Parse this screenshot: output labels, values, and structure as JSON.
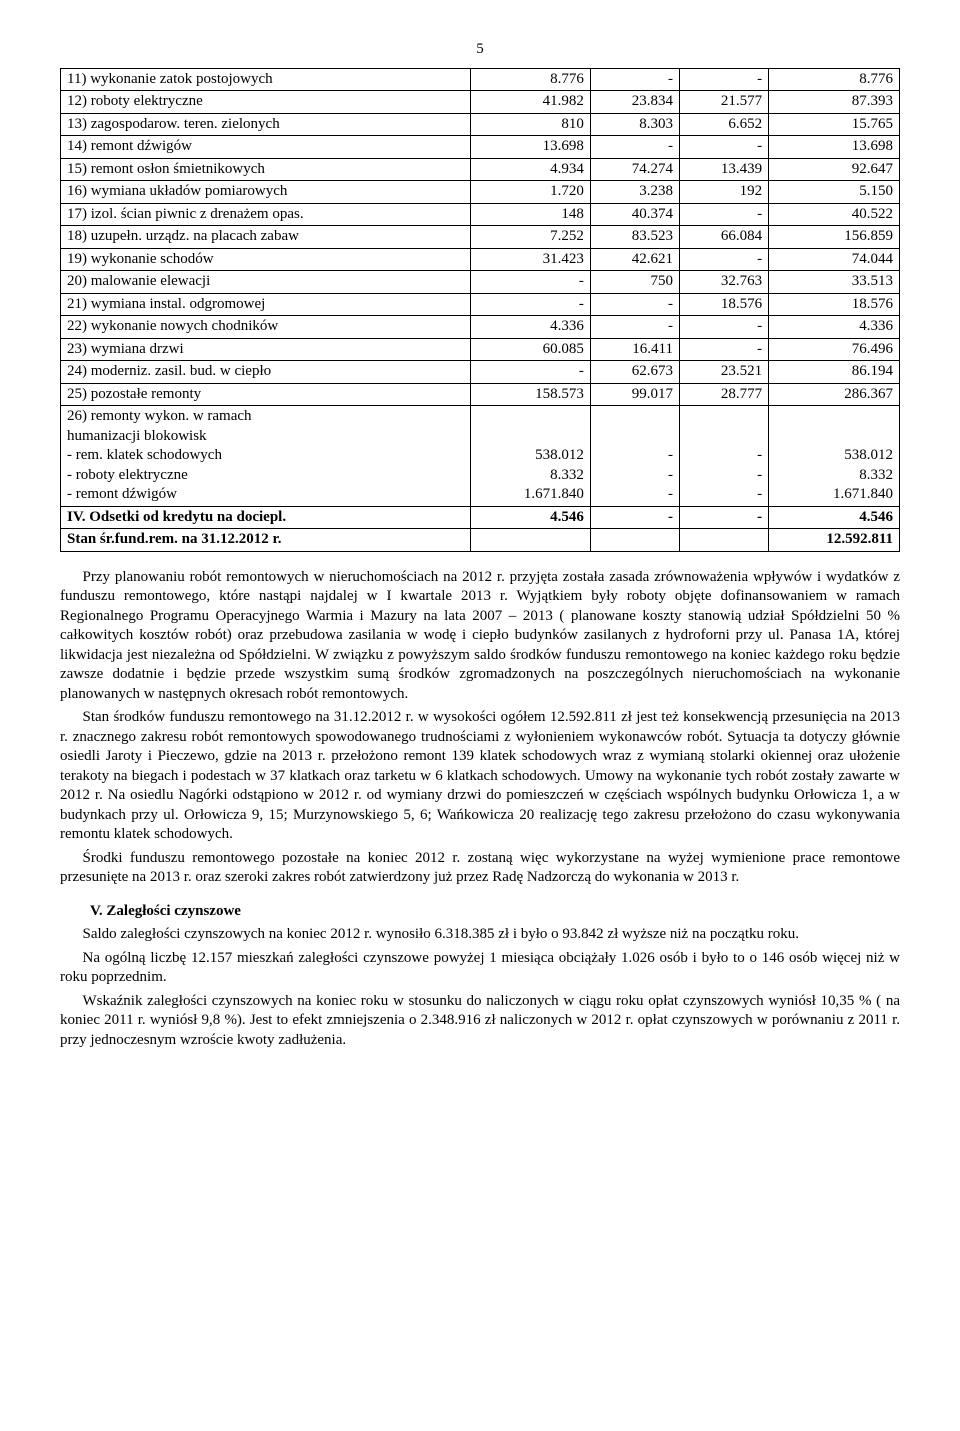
{
  "page_number": "5",
  "table_rows": [
    {
      "label": "11) wykonanie zatok postojowych",
      "c1": "8.776",
      "c2": "-",
      "c3": "-",
      "c4": "8.776",
      "bold": false
    },
    {
      "label": "12) roboty elektryczne",
      "c1": "41.982",
      "c2": "23.834",
      "c3": "21.577",
      "c4": "87.393",
      "bold": false
    },
    {
      "label": "13) zagospodarow. teren. zielonych",
      "c1": "810",
      "c2": "8.303",
      "c3": "6.652",
      "c4": "15.765",
      "bold": false
    },
    {
      "label": "14) remont dźwigów",
      "c1": "13.698",
      "c2": "-",
      "c3": "-",
      "c4": "13.698",
      "bold": false
    },
    {
      "label": "15) remont osłon śmietnikowych",
      "c1": "4.934",
      "c2": "74.274",
      "c3": "13.439",
      "c4": "92.647",
      "bold": false
    },
    {
      "label": "16) wymiana układów pomiarowych",
      "c1": "1.720",
      "c2": "3.238",
      "c3": "192",
      "c4": "5.150",
      "bold": false
    },
    {
      "label": "17) izol. ścian piwnic z drenażem opas.",
      "c1": "148",
      "c2": "40.374",
      "c3": "-",
      "c4": "40.522",
      "bold": false
    },
    {
      "label": "18) uzupełn. urządz. na placach zabaw",
      "c1": "7.252",
      "c2": "83.523",
      "c3": "66.084",
      "c4": "156.859",
      "bold": false
    },
    {
      "label": "19) wykonanie schodów",
      "c1": "31.423",
      "c2": "42.621",
      "c3": "-",
      "c4": "74.044",
      "bold": false
    },
    {
      "label": "20) malowanie elewacji",
      "c1": "-",
      "c2": "750",
      "c3": "32.763",
      "c4": "33.513",
      "bold": false
    },
    {
      "label": "21) wymiana instal. odgromowej",
      "c1": "-",
      "c2": "-",
      "c3": "18.576",
      "c4": "18.576",
      "bold": false
    },
    {
      "label": "22) wykonanie nowych chodników",
      "c1": "4.336",
      "c2": "-",
      "c3": "-",
      "c4": "4.336",
      "bold": false
    },
    {
      "label": "23) wymiana drzwi",
      "c1": "60.085",
      "c2": "16.411",
      "c3": "-",
      "c4": "76.496",
      "bold": false
    },
    {
      "label": "24) moderniz. zasil. bud. w ciepło",
      "c1": "-",
      "c2": "62.673",
      "c3": "23.521",
      "c4": "86.194",
      "bold": false
    },
    {
      "label": "25) pozostałe remonty",
      "c1": "158.573",
      "c2": "99.017",
      "c3": "28.777",
      "c4": "286.367",
      "bold": false
    },
    {
      "label": "26) remonty wykon. w ramach\n      humanizacji blokowisk\n   - rem. klatek schodowych\n   - roboty elektryczne\n   - remont dźwigów",
      "c1": "\n\n538.012\n8.332\n1.671.840",
      "c2": "\n\n-\n-\n-",
      "c3": "\n\n-\n-\n-",
      "c4": "\n\n538.012\n8.332\n1.671.840",
      "bold": false,
      "multiline": true
    },
    {
      "label": "IV. Odsetki od kredytu na dociepl.",
      "c1": "4.546",
      "c2": "-",
      "c3": "-",
      "c4": "4.546",
      "bold": true
    },
    {
      "label": "Stan śr.fund.rem. na 31.12.2012 r.",
      "c1": "",
      "c2": "",
      "c3": "",
      "c4": "12.592.811",
      "bold": true
    }
  ],
  "para1": "Przy planowaniu robót remontowych w nieruchomościach na 2012 r. przyjęta została zasada zrównoważenia wpływów i wydatków z funduszu remontowego, które nastąpi najdalej w I kwartale 2013 r. Wyjątkiem były roboty objęte dofinansowaniem w ramach Regionalnego Programu Operacyjnego Warmia i Mazury na lata 2007 – 2013 ( planowane koszty stanowią udział Spółdzielni 50 % całkowitych kosztów robót) oraz przebudowa zasilania w wodę i ciepło budynków zasilanych z hydroforni przy ul. Panasa 1A, której likwidacja jest niezależna od Spółdzielni. W związku z powyższym saldo środków funduszu remontowego na koniec każdego roku będzie zawsze dodatnie i będzie przede wszystkim sumą środków zgromadzonych na poszczególnych nieruchomościach na wykonanie planowanych w następnych okresach robót remontowych.",
  "para2": "Stan środków funduszu remontowego na 31.12.2012 r. w wysokości ogółem 12.592.811 zł jest też konsekwencją przesunięcia na 2013 r. znacznego zakresu robót remontowych spowodowanego trudnościami z wyłonieniem wykonawców robót. Sytuacja ta dotyczy głównie osiedli Jaroty i Pieczewo, gdzie na 2013 r. przełożono remont 139 klatek schodowych wraz z wymianą stolarki okiennej oraz ułożenie terakoty na biegach i podestach w 37 klatkach oraz tarketu w 6 klatkach schodowych. Umowy na wykonanie tych robót zostały zawarte w 2012 r. Na osiedlu Nagórki odstąpiono w 2012 r. od wymiany drzwi do pomieszczeń w częściach wspólnych budynku Orłowicza 1, a w budynkach przy ul. Orłowicza 9, 15; Murzynowskiego 5, 6; Wańkowicza 20 realizację tego zakresu przełożono do czasu wykonywania remontu klatek schodowych.",
  "para3": "Środki funduszu remontowego pozostałe na koniec 2012 r. zostaną więc wykorzystane na wyżej wymienione prace remontowe przesunięte na 2013 r. oraz szeroki zakres robót zatwierdzony już przez Radę Nadzorczą do wykonania w 2013 r.",
  "heading5": "V.  Zaległości  czynszowe",
  "para4": "Saldo zaległości czynszowych na koniec 2012 r. wynosiło 6.318.385 zł i było o 93.842 zł wyższe niż na początku roku.",
  "para5": "Na ogólną liczbę 12.157 mieszkań zaległości czynszowe powyżej 1 miesiąca obciążały 1.026 osób i było to o 146 osób więcej niż w roku poprzednim.",
  "para6": "Wskaźnik zaległości czynszowych na koniec roku w stosunku do naliczonych w ciągu roku opłat czynszowych wyniósł 10,35 % ( na koniec 2011 r. wyniósł 9,8 %). Jest to efekt zmniejszenia o 2.348.916 zł naliczonych w 2012 r. opłat czynszowych w porównaniu z 2011 r. przy jednoczesnym wzroście kwoty zadłużenia."
}
